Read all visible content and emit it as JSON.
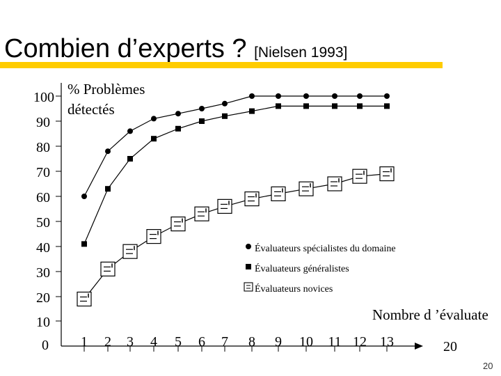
{
  "slide": {
    "title": "Combien d’experts ?",
    "citation": "[Nielsen 1993]",
    "page_number": "20",
    "accent_color": "#ffcc00"
  },
  "chart_data": {
    "type": "line",
    "title": "",
    "ylabel_line1": "% Problèmes",
    "ylabel_line2": "détectés",
    "xlabel": "Nombre d ’évaluate",
    "yticks": [
      0,
      10,
      20,
      30,
      40,
      50,
      60,
      70,
      80,
      90,
      100
    ],
    "xticks": [
      1,
      2,
      3,
      4,
      5,
      6,
      7,
      8,
      9,
      10,
      11,
      12,
      13,
      20
    ],
    "grid": false,
    "legend_position": "right",
    "series": [
      {
        "name": "Évaluateurs spécialistes du domaine",
        "marker": "circle",
        "x": [
          1,
          2,
          3,
          4,
          5,
          6,
          7,
          8,
          9,
          10,
          11,
          12,
          13
        ],
        "values": [
          60,
          78,
          86,
          91,
          93,
          95,
          97,
          100,
          100,
          100,
          100,
          100,
          100
        ]
      },
      {
        "name": "Évaluateurs généralistes",
        "marker": "square",
        "x": [
          1,
          2,
          3,
          4,
          5,
          6,
          7,
          8,
          9,
          10,
          11,
          12,
          13
        ],
        "values": [
          41,
          63,
          75,
          83,
          87,
          90,
          92,
          94,
          96,
          96,
          96,
          96,
          96
        ]
      },
      {
        "name": "Évaluateurs novices",
        "marker": "novice-square",
        "x": [
          1,
          2,
          3,
          4,
          5,
          6,
          7,
          8,
          9,
          10,
          11,
          12,
          13
        ],
        "values": [
          19,
          31,
          38,
          44,
          49,
          53,
          56,
          59,
          61,
          63,
          65,
          68,
          69
        ]
      }
    ]
  }
}
